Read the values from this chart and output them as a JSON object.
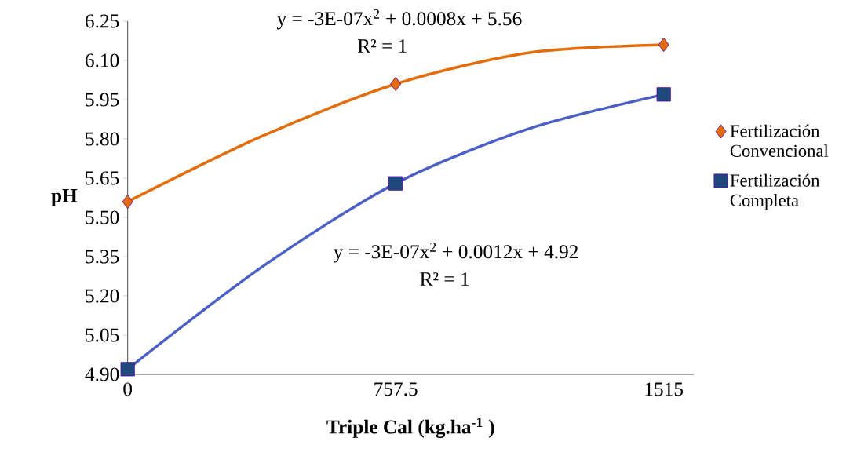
{
  "chart_data": {
    "type": "scatter",
    "xlabel": "Triple Cal (kg.ha$^{-1}$ )",
    "ylabel": "pH",
    "xlim": [
      0,
      1600
    ],
    "xticks": [
      0,
      757.5,
      1515
    ],
    "ylim": [
      4.9,
      6.25
    ],
    "yticks": [
      {
        "value": 4.9,
        "label": "4.90"
      },
      {
        "value": 5.05,
        "label": "5.05"
      },
      {
        "value": 5.2,
        "label": "5.20"
      },
      {
        "value": 5.35,
        "label": "5.35"
      },
      {
        "value": 5.5,
        "label": "5.50"
      },
      {
        "value": 5.65,
        "label": "5.65"
      },
      {
        "value": 5.8,
        "label": "5.80"
      },
      {
        "value": 5.95,
        "label": "5.95"
      },
      {
        "value": 6.1,
        "label": "6.10"
      },
      {
        "value": 6.25,
        "label": "6.25"
      }
    ],
    "grid": false,
    "legend": "right",
    "series": [
      {
        "name": "Fertilización Convencional",
        "marker": "diamond",
        "color": "#e36c09",
        "x": [
          0,
          757.5,
          1515
        ],
        "values": [
          5.56,
          6.01,
          6.16
        ]
      },
      {
        "name": "Fertilización Completa",
        "marker": "square",
        "color": "#1f497d",
        "x": [
          0,
          757.5,
          1515
        ],
        "values": [
          4.92,
          5.63,
          5.97
        ]
      },
      {
        "type": "line",
        "color": "#e46c0a",
        "x": [
          0,
          378.75,
          757.5,
          1136.25,
          1515
        ],
        "values": [
          5.56,
          5.81,
          6.01,
          6.13,
          6.16
        ]
      },
      {
        "type": "line",
        "color": "#4a5fc8",
        "x": [
          0,
          378.75,
          757.5,
          1136.25,
          1515
        ],
        "values": [
          4.92,
          5.31,
          5.63,
          5.84,
          5.97
        ]
      }
    ],
    "annotations": [
      "y = -3E-07x$^{2}$ + 0.0008x + 5.56",
      "R² = 1",
      "y = -3E-07x$^{2}$ + 0.0012x + 4.92",
      "R² = 1"
    ]
  }
}
